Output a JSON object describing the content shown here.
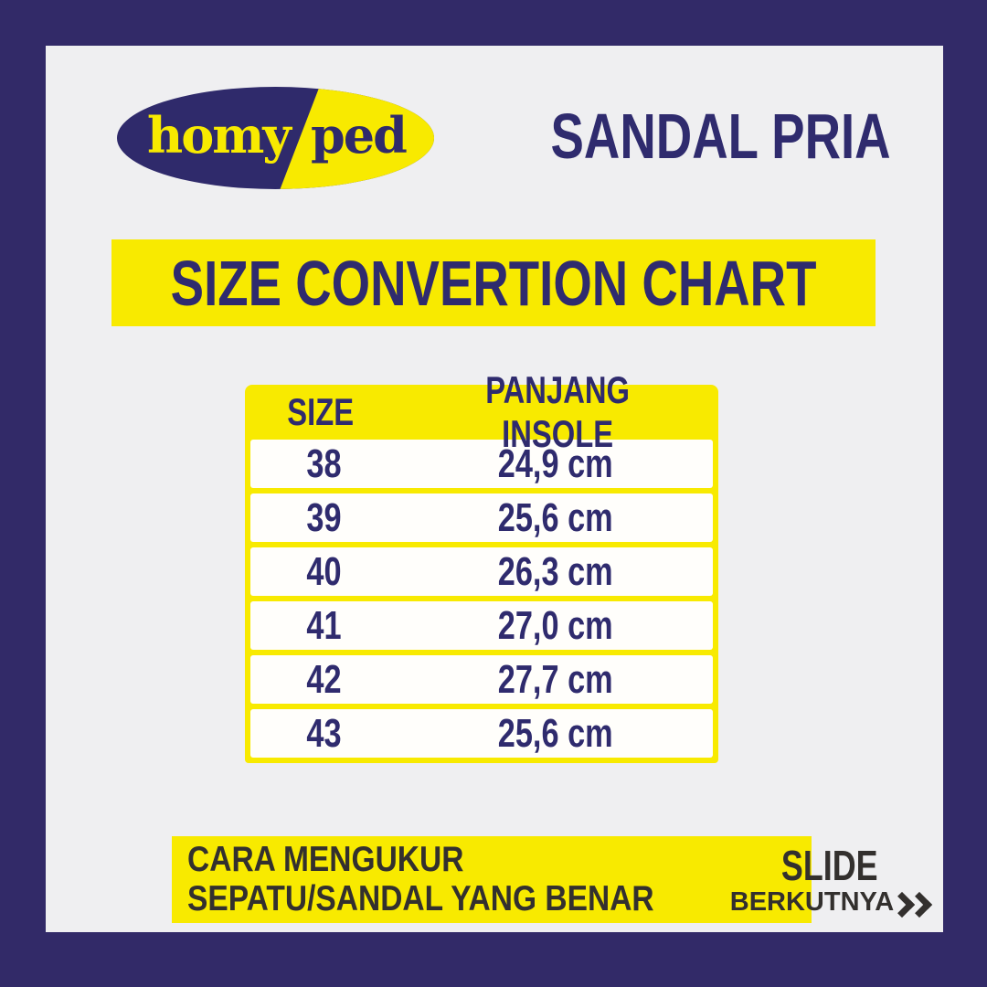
{
  "colors": {
    "navy": "#2f2b6e",
    "frame_navy": "#322a68",
    "yellow": "#f8ea00",
    "background": "#efeff1",
    "row_white": "#fffefb",
    "footer_text": "#33302e"
  },
  "logo": {
    "left_text": "homy",
    "right_text": "ped"
  },
  "header": {
    "category": "SANDAL PRIA"
  },
  "title_banner": {
    "text": "SIZE CONVERTION CHART"
  },
  "chart_data": {
    "type": "table",
    "title": "SIZE CONVERTION CHART",
    "columns": [
      "SIZE",
      "PANJANG INSOLE"
    ],
    "rows": [
      [
        "38",
        "24,9 cm"
      ],
      [
        "39",
        "25,6 cm"
      ],
      [
        "40",
        "26,3 cm"
      ],
      [
        "41",
        "27,0 cm"
      ],
      [
        "42",
        "27,7 cm"
      ],
      [
        "43",
        "25,6 cm"
      ]
    ]
  },
  "table": {
    "headers": [
      "SIZE",
      "PANJANG INSOLE"
    ],
    "rows": [
      {
        "size": "38",
        "insole": "24,9 cm"
      },
      {
        "size": "39",
        "insole": "25,6 cm"
      },
      {
        "size": "40",
        "insole": "26,3 cm"
      },
      {
        "size": "41",
        "insole": "27,0 cm"
      },
      {
        "size": "42",
        "insole": "27,7 cm"
      },
      {
        "size": "43",
        "insole": "25,6 cm"
      }
    ]
  },
  "footer": {
    "line1": "CARA MENGUKUR",
    "line2": "SEPATU/SANDAL YANG BENAR",
    "slide_label": "SLIDE",
    "next_label": "BERKUTNYA"
  }
}
